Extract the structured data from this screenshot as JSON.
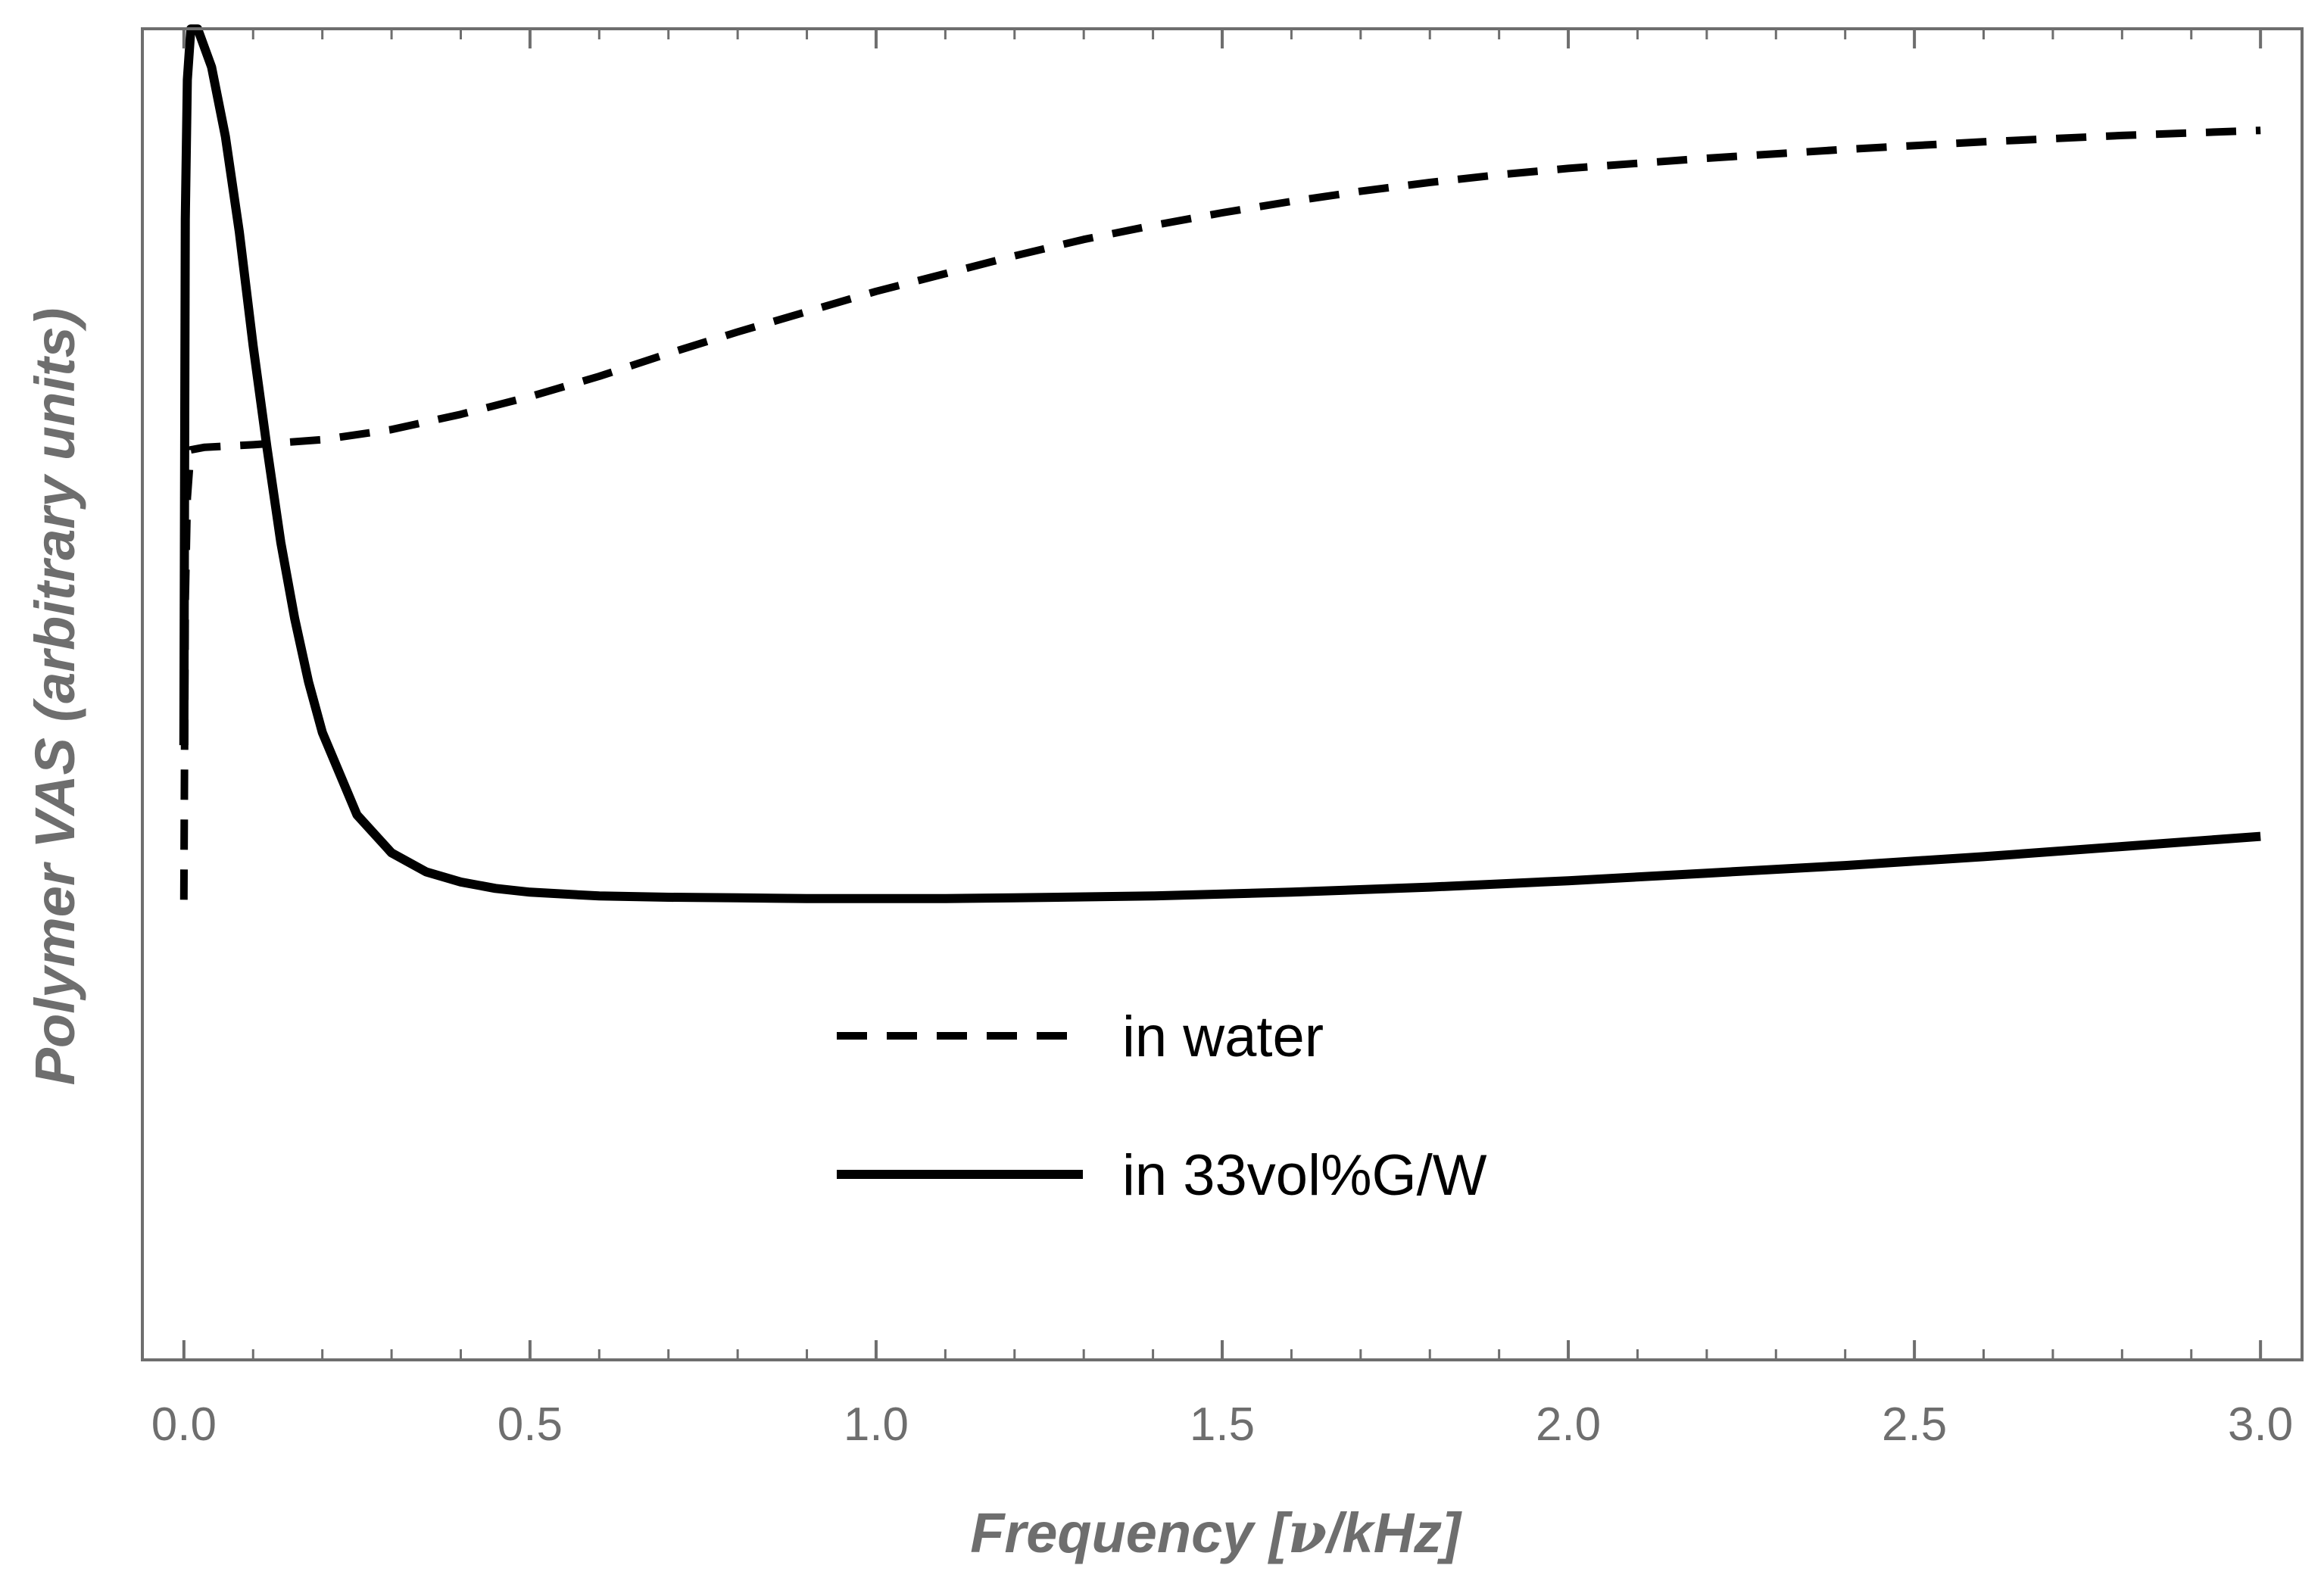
{
  "chart_data": {
    "type": "line",
    "title": "",
    "xlabel": "Frequency [ν/kHz]",
    "xlabel_prefix": "Frequency [",
    "xlabel_symbol": "ν",
    "xlabel_suffix": "/kHz]",
    "ylabel": "Polymer VAS (arbitrary units)",
    "xlim": [
      -0.06,
      3.06
    ],
    "ylim": [
      0,
      1
    ],
    "xticks": [
      0.0,
      0.5,
      1.0,
      1.5,
      2.0,
      2.5,
      3.0
    ],
    "xtick_labels": [
      "0.0",
      "0.5",
      "1.0",
      "1.5",
      "2.0",
      "2.5",
      "3.0"
    ],
    "minor_xtick_step": 0.1,
    "yticks": [],
    "grid": false,
    "legend_position": "center",
    "series": [
      {
        "name": "in water",
        "style": "dashed",
        "color": "#000000",
        "x": [
          0.0,
          0.002,
          0.005,
          0.01,
          0.03,
          0.1,
          0.2,
          0.3,
          0.4,
          0.5,
          0.6,
          0.7,
          0.8,
          0.9,
          1.0,
          1.1,
          1.2,
          1.3,
          1.4,
          1.5,
          1.6,
          1.7,
          1.8,
          1.9,
          2.0,
          2.2,
          2.4,
          2.6,
          2.8,
          3.0
        ],
        "y": [
          0.363,
          0.6,
          0.68,
          0.718,
          0.72,
          0.722,
          0.726,
          0.734,
          0.746,
          0.76,
          0.776,
          0.794,
          0.811,
          0.827,
          0.843,
          0.857,
          0.871,
          0.884,
          0.895,
          0.905,
          0.914,
          0.922,
          0.929,
          0.935,
          0.94,
          0.948,
          0.955,
          0.961,
          0.966,
          0.97
        ]
      },
      {
        "name": "in 33vol%G/W",
        "style": "solid",
        "color": "#000000",
        "x": [
          0.0,
          0.002,
          0.005,
          0.01,
          0.02,
          0.04,
          0.06,
          0.08,
          0.1,
          0.12,
          0.14,
          0.16,
          0.18,
          0.2,
          0.25,
          0.3,
          0.35,
          0.4,
          0.45,
          0.5,
          0.6,
          0.7,
          0.8,
          0.9,
          1.0,
          1.1,
          1.2,
          1.4,
          1.6,
          1.8,
          2.0,
          2.2,
          2.4,
          2.6,
          2.8,
          3.0
        ],
        "y": [
          0.485,
          0.9,
          1.01,
          1.05,
          1.05,
          1.02,
          0.965,
          0.89,
          0.8,
          0.72,
          0.645,
          0.585,
          0.535,
          0.495,
          0.43,
          0.4,
          0.385,
          0.377,
          0.372,
          0.369,
          0.366,
          0.365,
          0.3645,
          0.364,
          0.364,
          0.364,
          0.3645,
          0.366,
          0.369,
          0.373,
          0.378,
          0.384,
          0.39,
          0.397,
          0.405,
          0.413
        ]
      }
    ]
  }
}
